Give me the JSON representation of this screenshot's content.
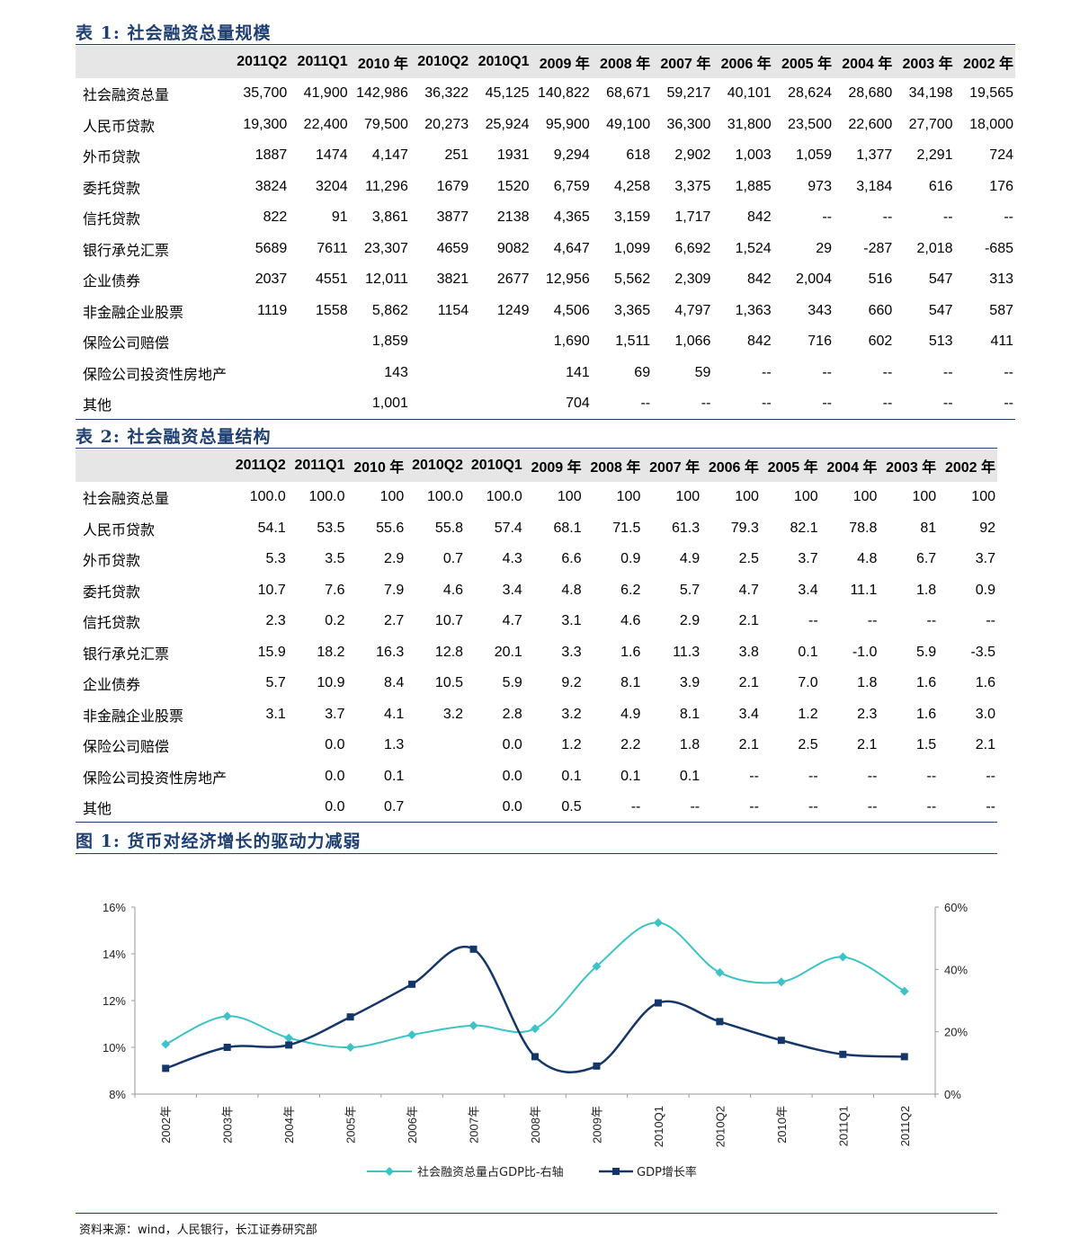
{
  "table1": {
    "title": "表 1:  社会融资总量规模",
    "headers": [
      "2011Q2",
      "2011Q1",
      "2010 年",
      "2010Q2",
      "2010Q1",
      "2009 年",
      "2008 年",
      "2007 年",
      "2006 年",
      "2005 年",
      "2004 年",
      "2003 年",
      "2002 年"
    ],
    "rows": [
      {
        "label": "社会融资总量",
        "cells": [
          "35,700",
          "41,900",
          "142,986",
          "36,322",
          "45,125",
          "140,822",
          "68,671",
          "59,217",
          "40,101",
          "28,624",
          "28,680",
          "34,198",
          "19,565"
        ]
      },
      {
        "label": "人民币贷款",
        "cells": [
          "19,300",
          "22,400",
          "79,500",
          "20,273",
          "25,924",
          "95,900",
          "49,100",
          "36,300",
          "31,800",
          "23,500",
          "22,600",
          "27,700",
          "18,000"
        ]
      },
      {
        "label": "外币贷款",
        "cells": [
          "1887",
          "1474",
          "4,147",
          "251",
          "1931",
          "9,294",
          "618",
          "2,902",
          "1,003",
          "1,059",
          "1,377",
          "2,291",
          "724"
        ]
      },
      {
        "label": "委托贷款",
        "cells": [
          "3824",
          "3204",
          "11,296",
          "1679",
          "1520",
          "6,759",
          "4,258",
          "3,375",
          "1,885",
          "973",
          "3,184",
          "616",
          "176"
        ]
      },
      {
        "label": "信托贷款",
        "cells": [
          "822",
          "91",
          "3,861",
          "3877",
          "2138",
          "4,365",
          "3,159",
          "1,717",
          "842",
          "--",
          "--",
          "--",
          "--"
        ]
      },
      {
        "label": "银行承兑汇票",
        "cells": [
          "5689",
          "7611",
          "23,307",
          "4659",
          "9082",
          "4,647",
          "1,099",
          "6,692",
          "1,524",
          "29",
          "-287",
          "2,018",
          "-685"
        ]
      },
      {
        "label": "企业债券",
        "cells": [
          "2037",
          "4551",
          "12,011",
          "3821",
          "2677",
          "12,956",
          "5,562",
          "2,309",
          "842",
          "2,004",
          "516",
          "547",
          "313"
        ]
      },
      {
        "label": "非金融企业股票",
        "cells": [
          "1119",
          "1558",
          "5,862",
          "1154",
          "1249",
          "4,506",
          "3,365",
          "4,797",
          "1,363",
          "343",
          "660",
          "547",
          "587"
        ]
      },
      {
        "label": "保险公司赔偿",
        "cells": [
          "",
          "",
          "1,859",
          "",
          "",
          "1,690",
          "1,511",
          "1,066",
          "842",
          "716",
          "602",
          "513",
          "411"
        ]
      },
      {
        "label": "保险公司投资性房地产",
        "cells": [
          "",
          "",
          "143",
          "",
          "",
          "141",
          "69",
          "59",
          "--",
          "--",
          "--",
          "--",
          "--"
        ]
      },
      {
        "label": "其他",
        "cells": [
          "",
          "",
          "1,001",
          "",
          "",
          "704",
          "--",
          "--",
          "--",
          "--",
          "--",
          "--",
          "--"
        ]
      }
    ]
  },
  "table2": {
    "title": "表 2:  社会融资总量结构",
    "headers": [
      "2011Q2",
      "2011Q1",
      "2010 年",
      "2010Q2",
      "2010Q1",
      "2009 年",
      "2008 年",
      "2007 年",
      "2006 年",
      "2005 年",
      "2004 年",
      "2003 年",
      "2002 年"
    ],
    "rows": [
      {
        "label": "社会融资总量",
        "cells": [
          "100.0",
          "100.0",
          "100",
          "100.0",
          "100.0",
          "100",
          "100",
          "100",
          "100",
          "100",
          "100",
          "100",
          "100"
        ]
      },
      {
        "label": "人民币贷款",
        "cells": [
          "54.1",
          "53.5",
          "55.6",
          "55.8",
          "57.4",
          "68.1",
          "71.5",
          "61.3",
          "79.3",
          "82.1",
          "78.8",
          "81",
          "92"
        ]
      },
      {
        "label": "外币贷款",
        "cells": [
          "5.3",
          "3.5",
          "2.9",
          "0.7",
          "4.3",
          "6.6",
          "0.9",
          "4.9",
          "2.5",
          "3.7",
          "4.8",
          "6.7",
          "3.7"
        ]
      },
      {
        "label": "委托贷款",
        "cells": [
          "10.7",
          "7.6",
          "7.9",
          "4.6",
          "3.4",
          "4.8",
          "6.2",
          "5.7",
          "4.7",
          "3.4",
          "11.1",
          "1.8",
          "0.9"
        ]
      },
      {
        "label": "信托贷款",
        "cells": [
          "2.3",
          "0.2",
          "2.7",
          "10.7",
          "4.7",
          "3.1",
          "4.6",
          "2.9",
          "2.1",
          "--",
          "--",
          "--",
          "--"
        ]
      },
      {
        "label": "银行承兑汇票",
        "cells": [
          "15.9",
          "18.2",
          "16.3",
          "12.8",
          "20.1",
          "3.3",
          "1.6",
          "11.3",
          "3.8",
          "0.1",
          "-1.0",
          "5.9",
          "-3.5"
        ]
      },
      {
        "label": "企业债券",
        "cells": [
          "5.7",
          "10.9",
          "8.4",
          "10.5",
          "5.9",
          "9.2",
          "8.1",
          "3.9",
          "2.1",
          "7.0",
          "1.8",
          "1.6",
          "1.6"
        ]
      },
      {
        "label": "非金融企业股票",
        "cells": [
          "3.1",
          "3.7",
          "4.1",
          "3.2",
          "2.8",
          "3.2",
          "4.9",
          "8.1",
          "3.4",
          "1.2",
          "2.3",
          "1.6",
          "3.0"
        ]
      },
      {
        "label": "保险公司赔偿",
        "cells": [
          "",
          "0.0",
          "1.3",
          "",
          "0.0",
          "1.2",
          "2.2",
          "1.8",
          "2.1",
          "2.5",
          "2.1",
          "1.5",
          "2.1"
        ]
      },
      {
        "label": "保险公司投资性房地产",
        "cells": [
          "",
          "0.0",
          "0.1",
          "",
          "0.0",
          "0.1",
          "0.1",
          "0.1",
          "--",
          "--",
          "--",
          "--",
          "--"
        ]
      },
      {
        "label": "其他",
        "cells": [
          "",
          "0.0",
          "0.7",
          "",
          "0.0",
          "0.5",
          "--",
          "--",
          "--",
          "--",
          "--",
          "--",
          "--"
        ]
      }
    ]
  },
  "figure1": {
    "title": "图  1:  货币对经济增长的驱动力减弱"
  },
  "chart_data": {
    "type": "line",
    "categories": [
      "2002年",
      "2003年",
      "2004年",
      "2005年",
      "2006年",
      "2007年",
      "2008年",
      "2009年",
      "2010Q1",
      "2010Q2",
      "2010年",
      "2011Q1",
      "2011Q2"
    ],
    "series": [
      {
        "name": "社会融资总量占GDP比-右轴",
        "axis": "right",
        "color": "#3cc3c8",
        "values": [
          16,
          25,
          18,
          15,
          19,
          22,
          21,
          41,
          55,
          39,
          36,
          44,
          33
        ]
      },
      {
        "name": "GDP增长率",
        "axis": "left",
        "color": "#14366b",
        "values": [
          9.1,
          10.0,
          10.1,
          11.3,
          12.7,
          14.2,
          9.6,
          9.2,
          11.9,
          11.1,
          10.3,
          9.7,
          9.6
        ]
      }
    ],
    "left_axis": {
      "ticks": [
        "8%",
        "10%",
        "12%",
        "14%",
        "16%"
      ],
      "ylim": [
        8,
        16
      ]
    },
    "right_axis": {
      "ticks": [
        "0%",
        "20%",
        "40%",
        "60%"
      ],
      "ylim": [
        0,
        60
      ]
    },
    "legend_position": "bottom"
  },
  "source_note": "资料来源：wind，人民银行，长江证券研究部"
}
